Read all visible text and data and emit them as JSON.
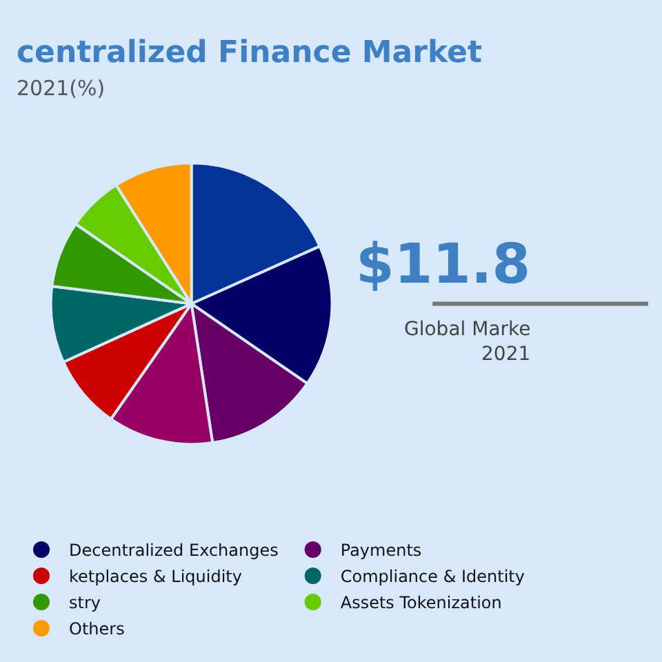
{
  "chart_data": {
    "type": "pie",
    "title": "centralized Finance Market",
    "subtitle": "2021(%)",
    "categories": [
      null,
      "Decentralized Exchanges",
      "Payments",
      null,
      "ketplaces & Liquidity",
      "Compliance & Identity",
      "stry",
      "Assets Tokenization",
      "Others"
    ],
    "values": [
      18.3,
      16.3,
      13.0,
      12.1,
      8.5,
      8.8,
      7.6,
      6.4,
      9.0
    ],
    "colors": [
      "#053399",
      "#000066",
      "#660066",
      "#990066",
      "#cc0000",
      "#006666",
      "#339900",
      "#66cc00",
      "#ff9900"
    ],
    "annotations": [
      "$11.8",
      "Global Marke",
      "2021"
    ],
    "legend": "bottom"
  }
}
